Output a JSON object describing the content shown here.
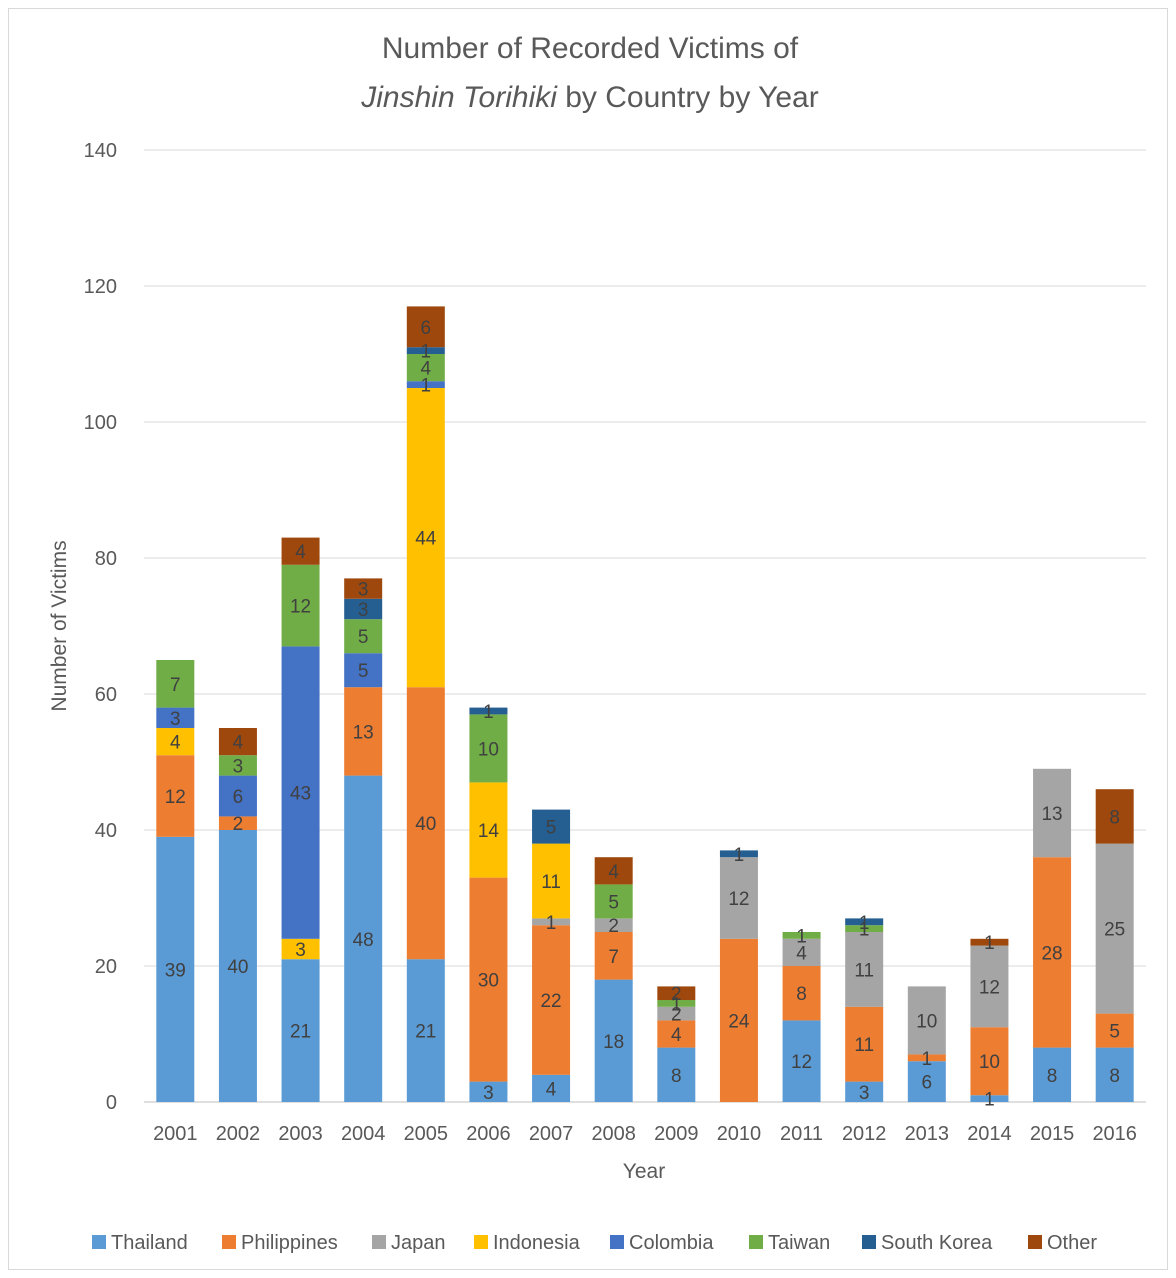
{
  "chart_data": {
    "type": "bar",
    "stacked": true,
    "title_line1": "Number of Recorded Victims of",
    "title_line2_italic": "Jinshin Torihiki",
    "title_line2_rest": " by Country by Year",
    "xlabel": "Year",
    "ylabel": "Number of Victims",
    "ylim": [
      0,
      140
    ],
    "yticks": [
      0,
      20,
      40,
      60,
      80,
      100,
      120,
      140
    ],
    "grid": true,
    "legend_position": "bottom",
    "categories": [
      "2001",
      "2002",
      "2003",
      "2004",
      "2005",
      "2006",
      "2007",
      "2008",
      "2009",
      "2010",
      "2011",
      "2012",
      "2013",
      "2014",
      "2015",
      "2016"
    ],
    "series": [
      {
        "name": "Thailand",
        "color": "#5b9bd5",
        "values": [
          39,
          40,
          21,
          48,
          21,
          3,
          4,
          18,
          8,
          0,
          12,
          3,
          6,
          1,
          8,
          8
        ]
      },
      {
        "name": "Philippines",
        "color": "#ed7d31",
        "values": [
          12,
          2,
          0,
          13,
          40,
          30,
          22,
          7,
          4,
          24,
          8,
          11,
          1,
          10,
          28,
          5
        ]
      },
      {
        "name": "Japan",
        "color": "#a5a5a5",
        "values": [
          0,
          0,
          0,
          0,
          0,
          0,
          1,
          2,
          2,
          12,
          4,
          11,
          10,
          12,
          13,
          25
        ]
      },
      {
        "name": "Indonesia",
        "color": "#ffc000",
        "values": [
          4,
          0,
          3,
          0,
          44,
          14,
          11,
          0,
          0,
          0,
          0,
          0,
          0,
          0,
          0,
          0
        ]
      },
      {
        "name": "Colombia",
        "color": "#4472c4",
        "values": [
          3,
          6,
          43,
          5,
          1,
          0,
          0,
          0,
          0,
          0,
          0,
          0,
          0,
          0,
          0,
          0
        ]
      },
      {
        "name": "Taiwan",
        "color": "#70ad47",
        "values": [
          7,
          3,
          12,
          5,
          4,
          10,
          0,
          5,
          1,
          0,
          1,
          1,
          0,
          0,
          0,
          0
        ]
      },
      {
        "name": "South Korea",
        "color": "#255e91",
        "values": [
          0,
          0,
          0,
          3,
          1,
          1,
          5,
          0,
          0,
          1,
          0,
          1,
          0,
          0,
          0,
          0
        ]
      },
      {
        "name": "Other",
        "color": "#9e480e",
        "values": [
          0,
          4,
          4,
          3,
          6,
          0,
          0,
          4,
          2,
          0,
          0,
          0,
          0,
          1,
          0,
          8
        ]
      }
    ]
  }
}
